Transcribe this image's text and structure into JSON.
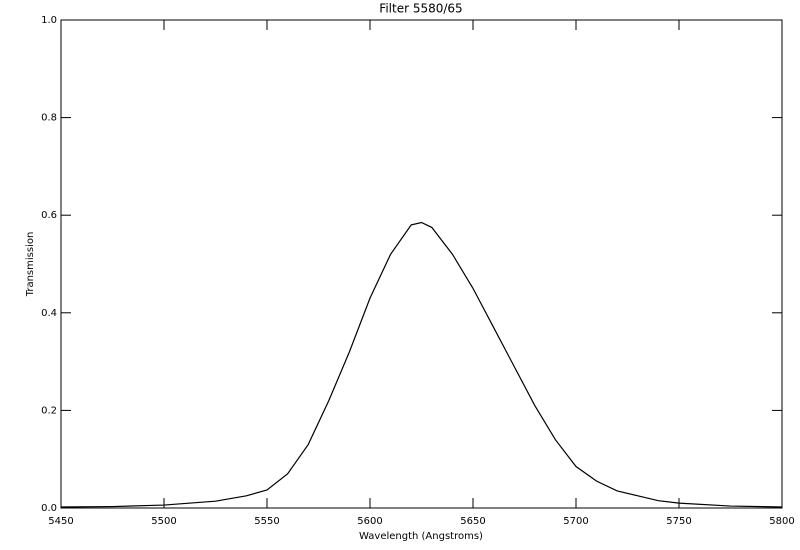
{
  "chart_data": {
    "type": "line",
    "title": "Filter 5580/65",
    "x_label": "Wavelength (Angstroms)",
    "y_label": "Transmission",
    "color": "#000000",
    "x": [
      5450,
      5475,
      5500,
      5525,
      5540,
      5550,
      5560,
      5570,
      5580,
      5590,
      5600,
      5610,
      5620,
      5625,
      5630,
      5640,
      5650,
      5660,
      5670,
      5680,
      5690,
      5700,
      5710,
      5720,
      5730,
      5740,
      5750,
      5775,
      5800
    ],
    "values": [
      0.002,
      0.003,
      0.006,
      0.014,
      0.025,
      0.037,
      0.07,
      0.13,
      0.22,
      0.32,
      0.43,
      0.52,
      0.58,
      0.585,
      0.575,
      0.52,
      0.45,
      0.37,
      0.29,
      0.21,
      0.14,
      0.085,
      0.055,
      0.035,
      0.025,
      0.015,
      0.01,
      0.004,
      0.002
    ],
    "xlim": [
      5450,
      5800
    ],
    "xticks": [
      5450,
      5500,
      5550,
      5600,
      5650,
      5700,
      5750,
      5800
    ],
    "ylim": [
      0,
      1
    ],
    "yticks": [
      {
        "value": 0,
        "label": "0.0"
      },
      0.2,
      0.4,
      0.6,
      0.8,
      {
        "value": 1,
        "label": "1.0"
      }
    ]
  }
}
